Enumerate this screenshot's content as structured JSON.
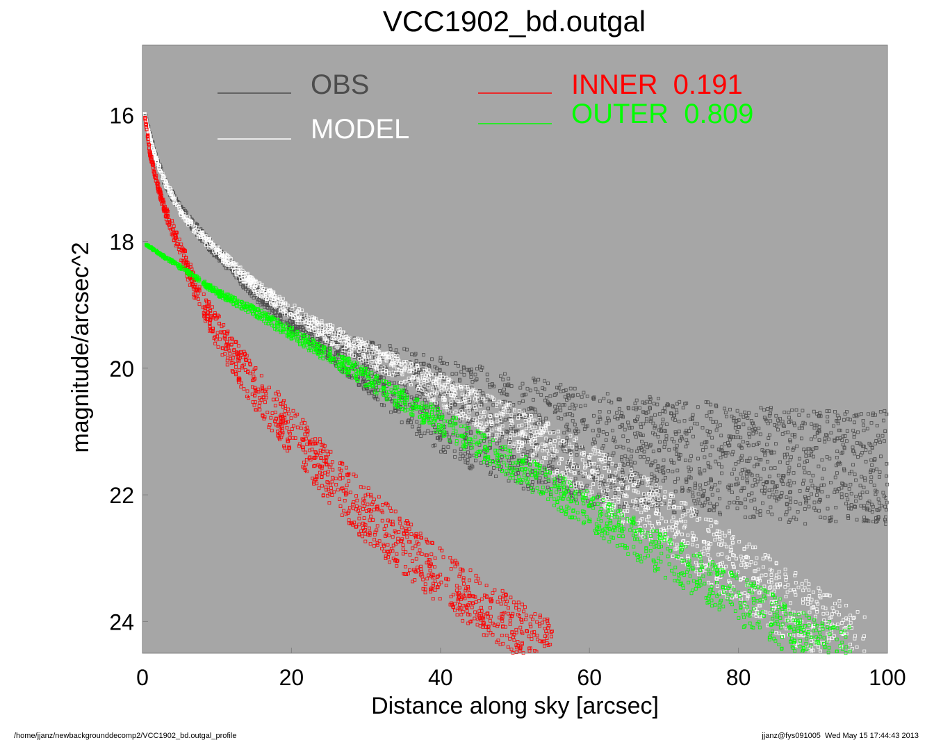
{
  "chart_data": {
    "type": "scatter",
    "title": "VCC1902_bd.outgal",
    "xlabel": "Distance along sky [arcsec]",
    "ylabel": "magnitude/arcsec^2",
    "xlim": [
      0,
      100
    ],
    "ylim": [
      24.5,
      14.9
    ],
    "y_inverted": true,
    "grid": false,
    "background_color": "#a6a6a6",
    "x_ticks": [
      {
        "value": 0,
        "label": "0"
      },
      {
        "value": 20,
        "label": "20"
      },
      {
        "value": 40,
        "label": "40"
      },
      {
        "value": 60,
        "label": "60"
      },
      {
        "value": 80,
        "label": "80"
      },
      {
        "value": 100,
        "label": "100"
      }
    ],
    "y_ticks": [
      {
        "value": 16,
        "label": "16"
      },
      {
        "value": 18,
        "label": "18"
      },
      {
        "value": 20,
        "label": "20"
      },
      {
        "value": 22,
        "label": "22"
      },
      {
        "value": 24,
        "label": "24"
      }
    ],
    "legend_placement": "top",
    "series": [
      {
        "name": "OBS",
        "color": "#4d4d4d",
        "marker": "open-square",
        "x": [
          0.3,
          1,
          2,
          3,
          5,
          7,
          10,
          15,
          20,
          25,
          30,
          35,
          40,
          45,
          50,
          60,
          70,
          80,
          90,
          100
        ],
        "y": [
          15.95,
          16.3,
          16.7,
          17.05,
          17.45,
          17.75,
          18.15,
          18.75,
          19.2,
          19.55,
          19.85,
          20.1,
          20.35,
          20.55,
          20.7,
          21.0,
          21.1,
          21.2,
          21.3,
          21.3
        ],
        "y_spread": [
          0.05,
          0.08,
          0.1,
          0.12,
          0.15,
          0.18,
          0.2,
          0.25,
          0.35,
          0.5,
          0.8,
          1.2,
          1.5,
          1.7,
          1.8,
          1.8,
          1.8,
          1.8,
          1.8,
          1.8
        ]
      },
      {
        "name": "MODEL",
        "color": "#ffffff",
        "marker": "open-square",
        "x": [
          0.3,
          1,
          2,
          3,
          5,
          7,
          10,
          15,
          20,
          25,
          30,
          35,
          40,
          45,
          50,
          55,
          60,
          70,
          80,
          90,
          97
        ],
        "y": [
          16.0,
          16.35,
          16.75,
          17.05,
          17.5,
          17.8,
          18.15,
          18.7,
          19.1,
          19.45,
          19.75,
          20.05,
          20.35,
          20.65,
          20.95,
          21.3,
          21.65,
          22.4,
          23.2,
          24.0,
          24.5
        ],
        "y_spread": [
          0.05,
          0.06,
          0.08,
          0.1,
          0.12,
          0.14,
          0.16,
          0.2,
          0.25,
          0.3,
          0.35,
          0.4,
          0.5,
          0.6,
          0.7,
          0.8,
          0.9,
          1.0,
          1.1,
          1.2,
          1.2
        ]
      },
      {
        "name": "INNER  0.191",
        "color": "#ff0000",
        "marker": "open-square",
        "x": [
          0.3,
          1,
          2,
          3,
          5,
          7,
          10,
          15,
          20,
          25,
          30,
          35,
          40,
          45,
          50,
          55
        ],
        "y": [
          16.0,
          16.6,
          17.1,
          17.5,
          18.1,
          18.7,
          19.4,
          20.3,
          21.0,
          21.7,
          22.3,
          22.8,
          23.3,
          23.7,
          24.1,
          24.45
        ],
        "y_spread": [
          0.05,
          0.1,
          0.12,
          0.18,
          0.3,
          0.4,
          0.55,
          0.7,
          0.8,
          0.85,
          0.9,
          0.9,
          0.9,
          0.9,
          0.9,
          0.9
        ]
      },
      {
        "name": "OUTER  0.809",
        "color": "#00ff00",
        "marker": "open-square",
        "x": [
          0.5,
          5,
          10,
          15,
          20,
          30,
          40,
          50,
          60,
          70,
          80,
          90,
          95
        ],
        "y": [
          18.05,
          18.4,
          18.8,
          19.1,
          19.45,
          20.15,
          20.85,
          21.55,
          22.25,
          22.95,
          23.65,
          24.35,
          24.5
        ],
        "y_spread": [
          0.02,
          0.06,
          0.1,
          0.15,
          0.2,
          0.3,
          0.4,
          0.5,
          0.6,
          0.7,
          0.8,
          0.85,
          0.85
        ]
      }
    ]
  },
  "footer": {
    "left": "/home/jjanz/newbackgrounddecomp2/VCC1902_bd.outgal_profile",
    "right": "jjanz@fys091005  Wed May 15 17:44:43 2013"
  }
}
